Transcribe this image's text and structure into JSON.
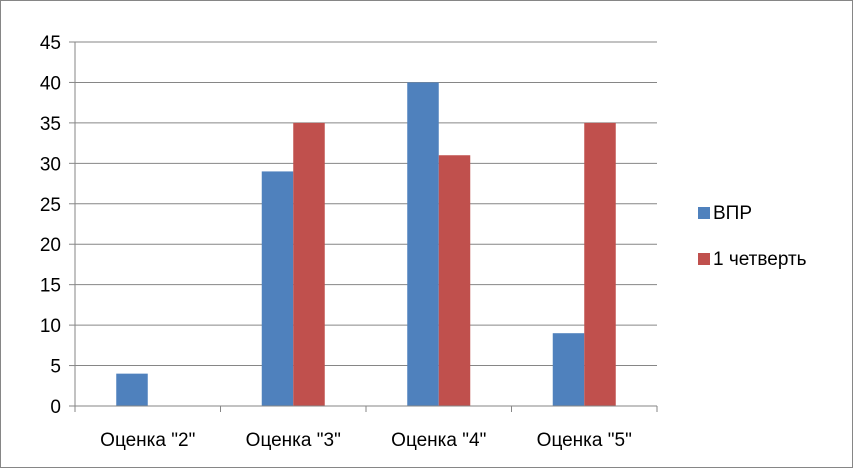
{
  "chart_data": {
    "type": "bar",
    "categories": [
      "Оценка \"2\"",
      "Оценка \"3\"",
      "Оценка \"4\"",
      "Оценка \"5\""
    ],
    "series": [
      {
        "name": "ВПР",
        "values": [
          4,
          29,
          40,
          9
        ],
        "color": "#4F81BD"
      },
      {
        "name": "1 четверть",
        "values": [
          0,
          35,
          31,
          35
        ],
        "color": "#C0504D"
      }
    ],
    "ylim": [
      0,
      45
    ],
    "ytick_step": 5,
    "grid": true,
    "legend_position": "right"
  }
}
